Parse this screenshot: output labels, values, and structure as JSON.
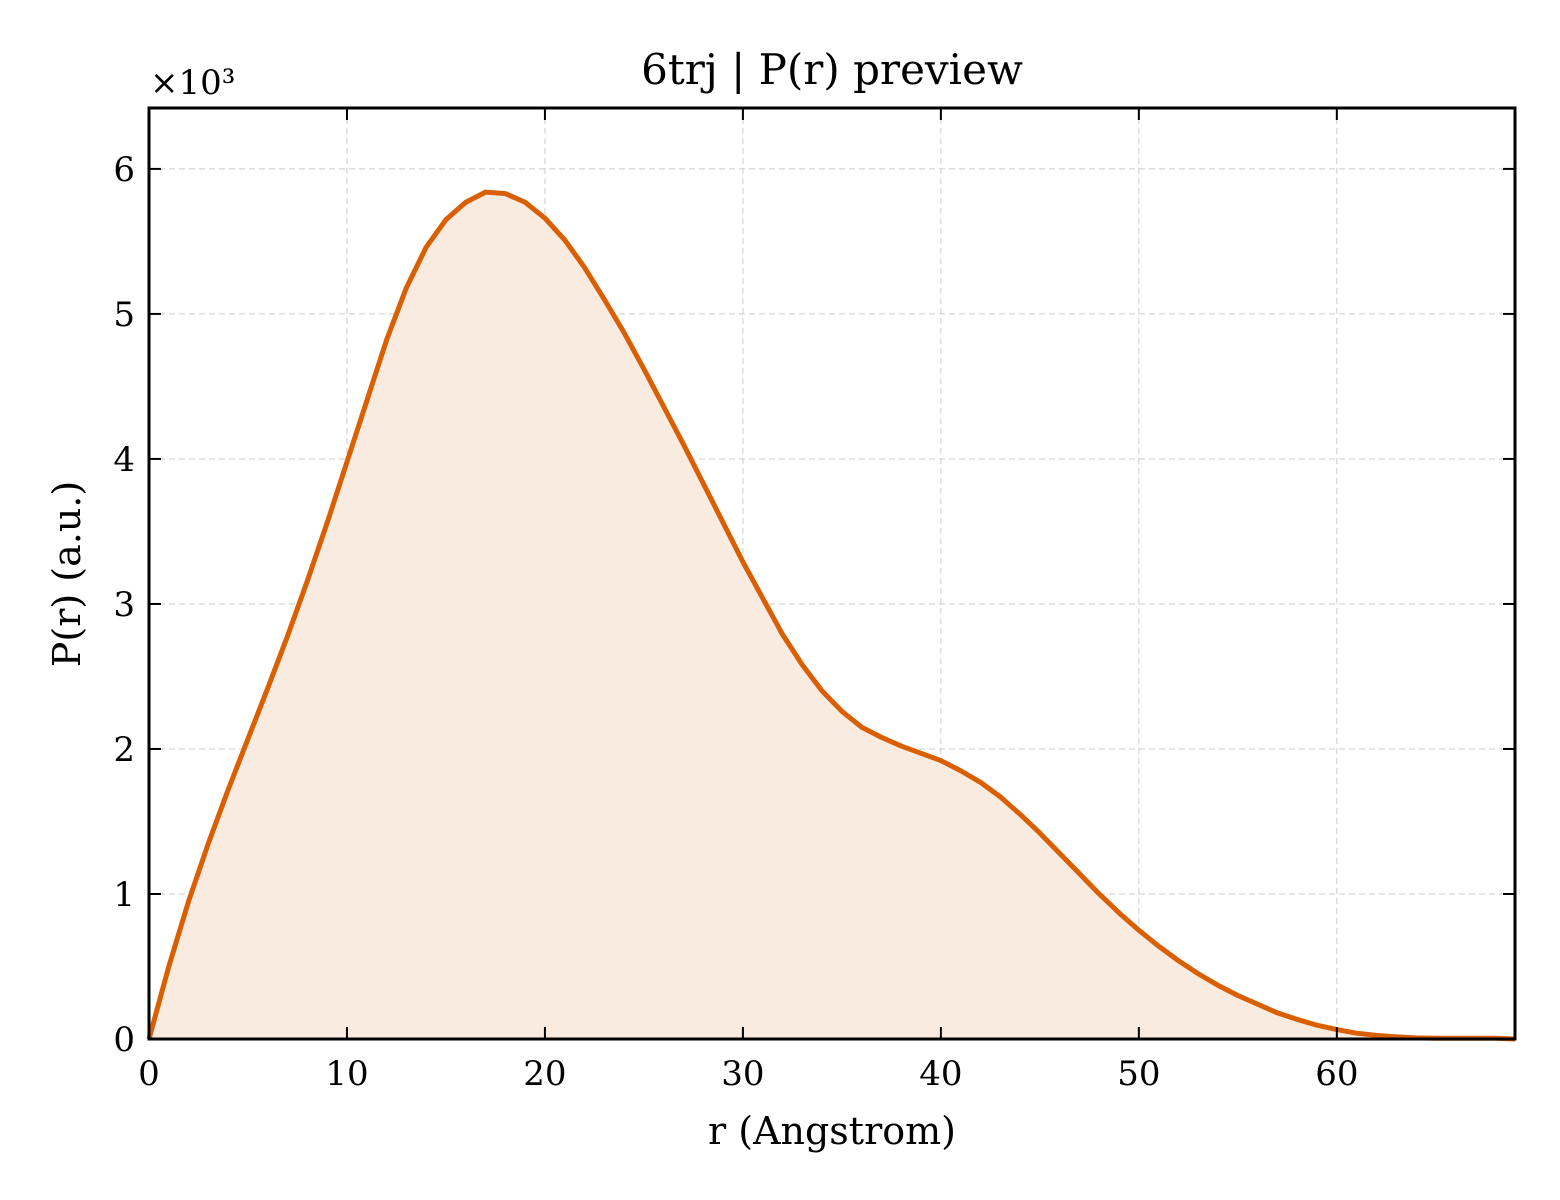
{
  "chart_data": {
    "type": "area",
    "title": "6trj | P(r) preview",
    "xlabel": "r (Angstrom)",
    "ylabel": "P(r) (a.u.)",
    "y_scale_factor_label": "×10³",
    "xlim": [
      0,
      69
    ],
    "ylim": [
      0,
      6.42
    ],
    "x_ticks": [
      0,
      10,
      20,
      30,
      40,
      50,
      60
    ],
    "y_ticks": [
      0,
      1,
      2,
      3,
      4,
      5,
      6
    ],
    "grid": true,
    "line_color": "#d95f02",
    "fill_color": "#f9ebe0",
    "series": [
      {
        "x": [
          0,
          1,
          2,
          3,
          4,
          5,
          6,
          7,
          8,
          9,
          10,
          11,
          12,
          13,
          14,
          15,
          16,
          17,
          18,
          19,
          20,
          21,
          22,
          23,
          24,
          25,
          26,
          27,
          28,
          29,
          30,
          31,
          32,
          33,
          34,
          35,
          36,
          37,
          38,
          39,
          40,
          41,
          42,
          43,
          44,
          45,
          46,
          47,
          48,
          49,
          50,
          51,
          52,
          53,
          54,
          55,
          56,
          57,
          58,
          59,
          60,
          61,
          62,
          63,
          64,
          65,
          66,
          67,
          68,
          69
        ],
        "y": [
          0,
          0.5,
          0.95,
          1.35,
          1.72,
          2.07,
          2.42,
          2.78,
          3.16,
          3.56,
          3.98,
          4.4,
          4.82,
          5.18,
          5.46,
          5.65,
          5.77,
          5.84,
          5.83,
          5.77,
          5.66,
          5.51,
          5.32,
          5.1,
          4.87,
          4.62,
          4.36,
          4.1,
          3.83,
          3.56,
          3.29,
          3.04,
          2.79,
          2.58,
          2.4,
          2.26,
          2.15,
          2.08,
          2.02,
          1.97,
          1.92,
          1.85,
          1.77,
          1.67,
          1.55,
          1.42,
          1.28,
          1.14,
          1.0,
          0.87,
          0.75,
          0.64,
          0.54,
          0.45,
          0.37,
          0.3,
          0.24,
          0.18,
          0.135,
          0.095,
          0.065,
          0.04,
          0.025,
          0.015,
          0.008,
          0.005,
          0.005,
          0.005,
          0.005,
          0
        ]
      }
    ]
  }
}
